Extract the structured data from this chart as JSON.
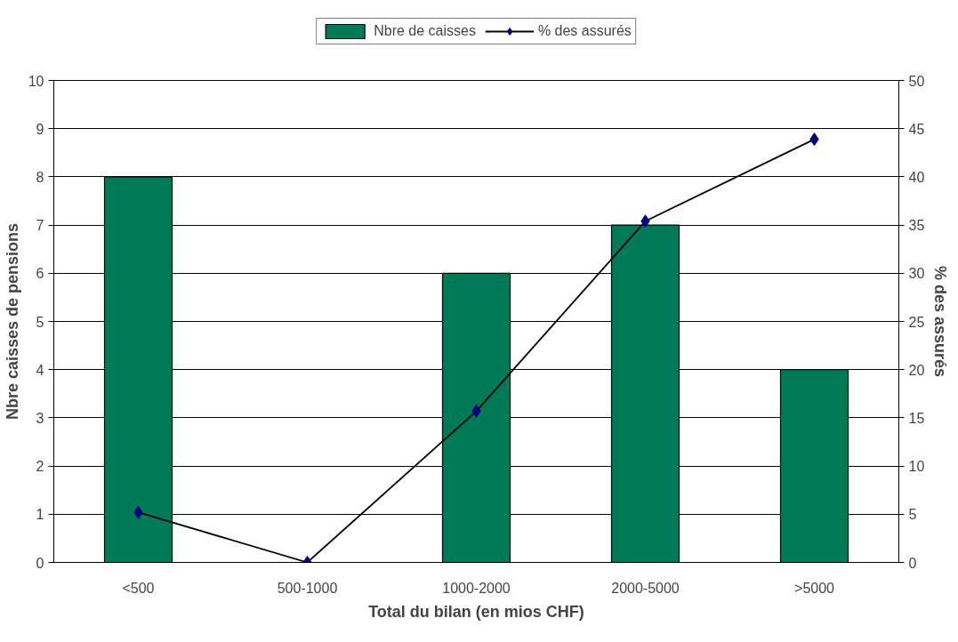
{
  "chart_data": {
    "type": "bar",
    "xlabel": "Total du bilan (en mios CHF)",
    "ylabel": "Nbre caisses de pensions",
    "y2label": "% des assurés",
    "categories": [
      "<500",
      "500-1000",
      "1000-2000",
      "2000-5000",
      ">5000"
    ],
    "series": [
      {
        "name": "Nbre de caisses",
        "type": "bar",
        "color": "#007a56",
        "values": [
          8,
          0,
          6,
          7,
          4
        ]
      },
      {
        "name": "% des assurés",
        "type": "line",
        "axis": "y2",
        "color": "#000080",
        "marker": "diamond",
        "line_style": "solid",
        "values": [
          5.2,
          0,
          15.7,
          35.4,
          43.9
        ]
      }
    ],
    "ylim": [
      0,
      10
    ],
    "yticks": [
      0,
      1,
      2,
      3,
      4,
      5,
      6,
      7,
      8,
      9,
      10
    ],
    "y2lim": [
      0,
      50
    ],
    "y2ticks": [
      0,
      5,
      10,
      15,
      20,
      25,
      30,
      35,
      40,
      45,
      50
    ],
    "grid": "y",
    "legend": "top"
  }
}
